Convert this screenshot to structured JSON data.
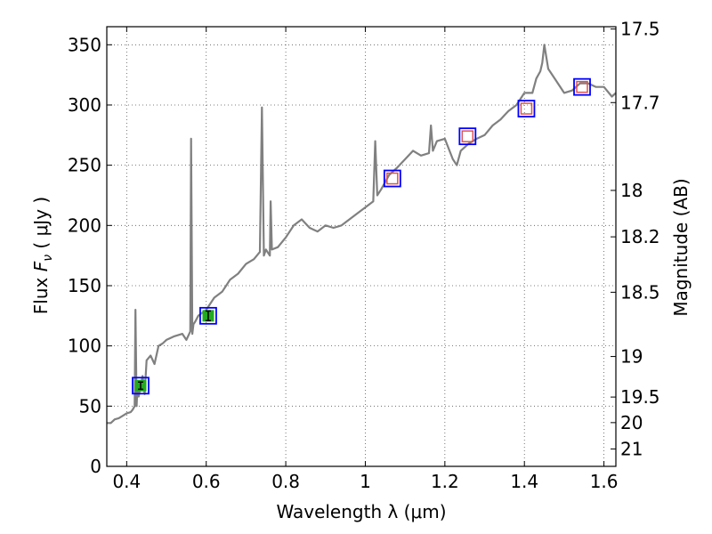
{
  "chart_data": {
    "type": "line",
    "title": "",
    "xlabel": "Wavelength  λ (μm)",
    "ylabel": "Flux  Fν  ( μJy )",
    "ylabel_parts": {
      "pre": "Flux ",
      "sym": "F",
      "sub": "ν",
      "post": "  ( μJy )"
    },
    "y2label": "Magnitude (AB)",
    "xlim": [
      0.35,
      1.63
    ],
    "ylim": [
      0,
      365
    ],
    "xticks": [
      0.4,
      0.6,
      0.8,
      1.0,
      1.2,
      1.4,
      1.6
    ],
    "xtick_labels": [
      "0.4",
      "0.6",
      "0.8",
      "1",
      "1.2",
      "1.4",
      "1.6"
    ],
    "yticks": [
      0,
      50,
      100,
      150,
      200,
      250,
      300,
      350
    ],
    "ytick_labels": [
      "0",
      "50",
      "100",
      "150",
      "200",
      "250",
      "300",
      "350"
    ],
    "y2ticks": [
      {
        "label": "17.5",
        "mag": 17.5
      },
      {
        "label": "17.7",
        "mag": 17.7
      },
      {
        "label": "18",
        "mag": 18.0
      },
      {
        "label": "18.2",
        "mag": 18.2
      },
      {
        "label": "18.5",
        "mag": 18.5
      },
      {
        "label": "19",
        "mag": 19.0
      },
      {
        "label": "19.5",
        "mag": 19.5
      },
      {
        "label": "20",
        "mag": 20.0
      },
      {
        "label": "21",
        "mag": 21.0
      }
    ],
    "grid": true,
    "series": [
      {
        "style": "spectrum",
        "color": "#808080",
        "x": [
          0.35,
          0.36,
          0.37,
          0.38,
          0.39,
          0.4,
          0.41,
          0.415,
          0.42,
          0.422,
          0.425,
          0.427,
          0.43,
          0.44,
          0.445,
          0.45,
          0.46,
          0.47,
          0.48,
          0.49,
          0.5,
          0.52,
          0.54,
          0.55,
          0.56,
          0.562,
          0.565,
          0.568,
          0.572,
          0.58,
          0.6,
          0.62,
          0.64,
          0.65,
          0.66,
          0.68,
          0.7,
          0.72,
          0.735,
          0.74,
          0.745,
          0.75,
          0.76,
          0.762,
          0.765,
          0.78,
          0.8,
          0.82,
          0.84,
          0.86,
          0.88,
          0.9,
          0.92,
          0.94,
          0.96,
          0.98,
          1.0,
          1.02,
          1.025,
          1.03,
          1.04,
          1.06,
          1.08,
          1.1,
          1.12,
          1.14,
          1.16,
          1.165,
          1.17,
          1.18,
          1.2,
          1.22,
          1.23,
          1.24,
          1.26,
          1.28,
          1.3,
          1.32,
          1.34,
          1.36,
          1.38,
          1.4,
          1.42,
          1.43,
          1.44,
          1.445,
          1.45,
          1.46,
          1.48,
          1.5,
          1.52,
          1.54,
          1.56,
          1.58,
          1.6,
          1.62,
          1.63
        ],
        "y": [
          36,
          36,
          39,
          40,
          42,
          44,
          45,
          47,
          50,
          130,
          50,
          65,
          58,
          75,
          60,
          88,
          92,
          85,
          100,
          102,
          105,
          108,
          110,
          105,
          112,
          272,
          110,
          118,
          120,
          125,
          130,
          140,
          145,
          150,
          155,
          160,
          168,
          172,
          178,
          298,
          175,
          180,
          175,
          220,
          180,
          182,
          190,
          200,
          205,
          198,
          195,
          200,
          198,
          200,
          205,
          210,
          215,
          220,
          270,
          225,
          230,
          242,
          248,
          255,
          262,
          258,
          260,
          283,
          262,
          270,
          272,
          255,
          250,
          262,
          268,
          272,
          275,
          283,
          288,
          295,
          300,
          310,
          310,
          322,
          328,
          335,
          350,
          330,
          320,
          310,
          312,
          318,
          318,
          315,
          315,
          307,
          310
        ]
      },
      {
        "style": "photometry_markers",
        "name": "",
        "points": [
          {
            "x": 0.435,
            "y": 67,
            "err": 3,
            "kind": "filled"
          },
          {
            "x": 0.605,
            "y": 125,
            "err": 4,
            "kind": "filled"
          },
          {
            "x": 1.068,
            "y": 239,
            "kind": "open"
          },
          {
            "x": 1.257,
            "y": 274,
            "kind": "open"
          },
          {
            "x": 1.405,
            "y": 297,
            "kind": "open"
          },
          {
            "x": 1.545,
            "y": 315,
            "kind": "open"
          }
        ]
      }
    ],
    "colors": {
      "spectrum": "#808080",
      "box": "#0000ff",
      "filled": "#22aa22",
      "open": "#e05050",
      "grid": "#555555"
    }
  }
}
